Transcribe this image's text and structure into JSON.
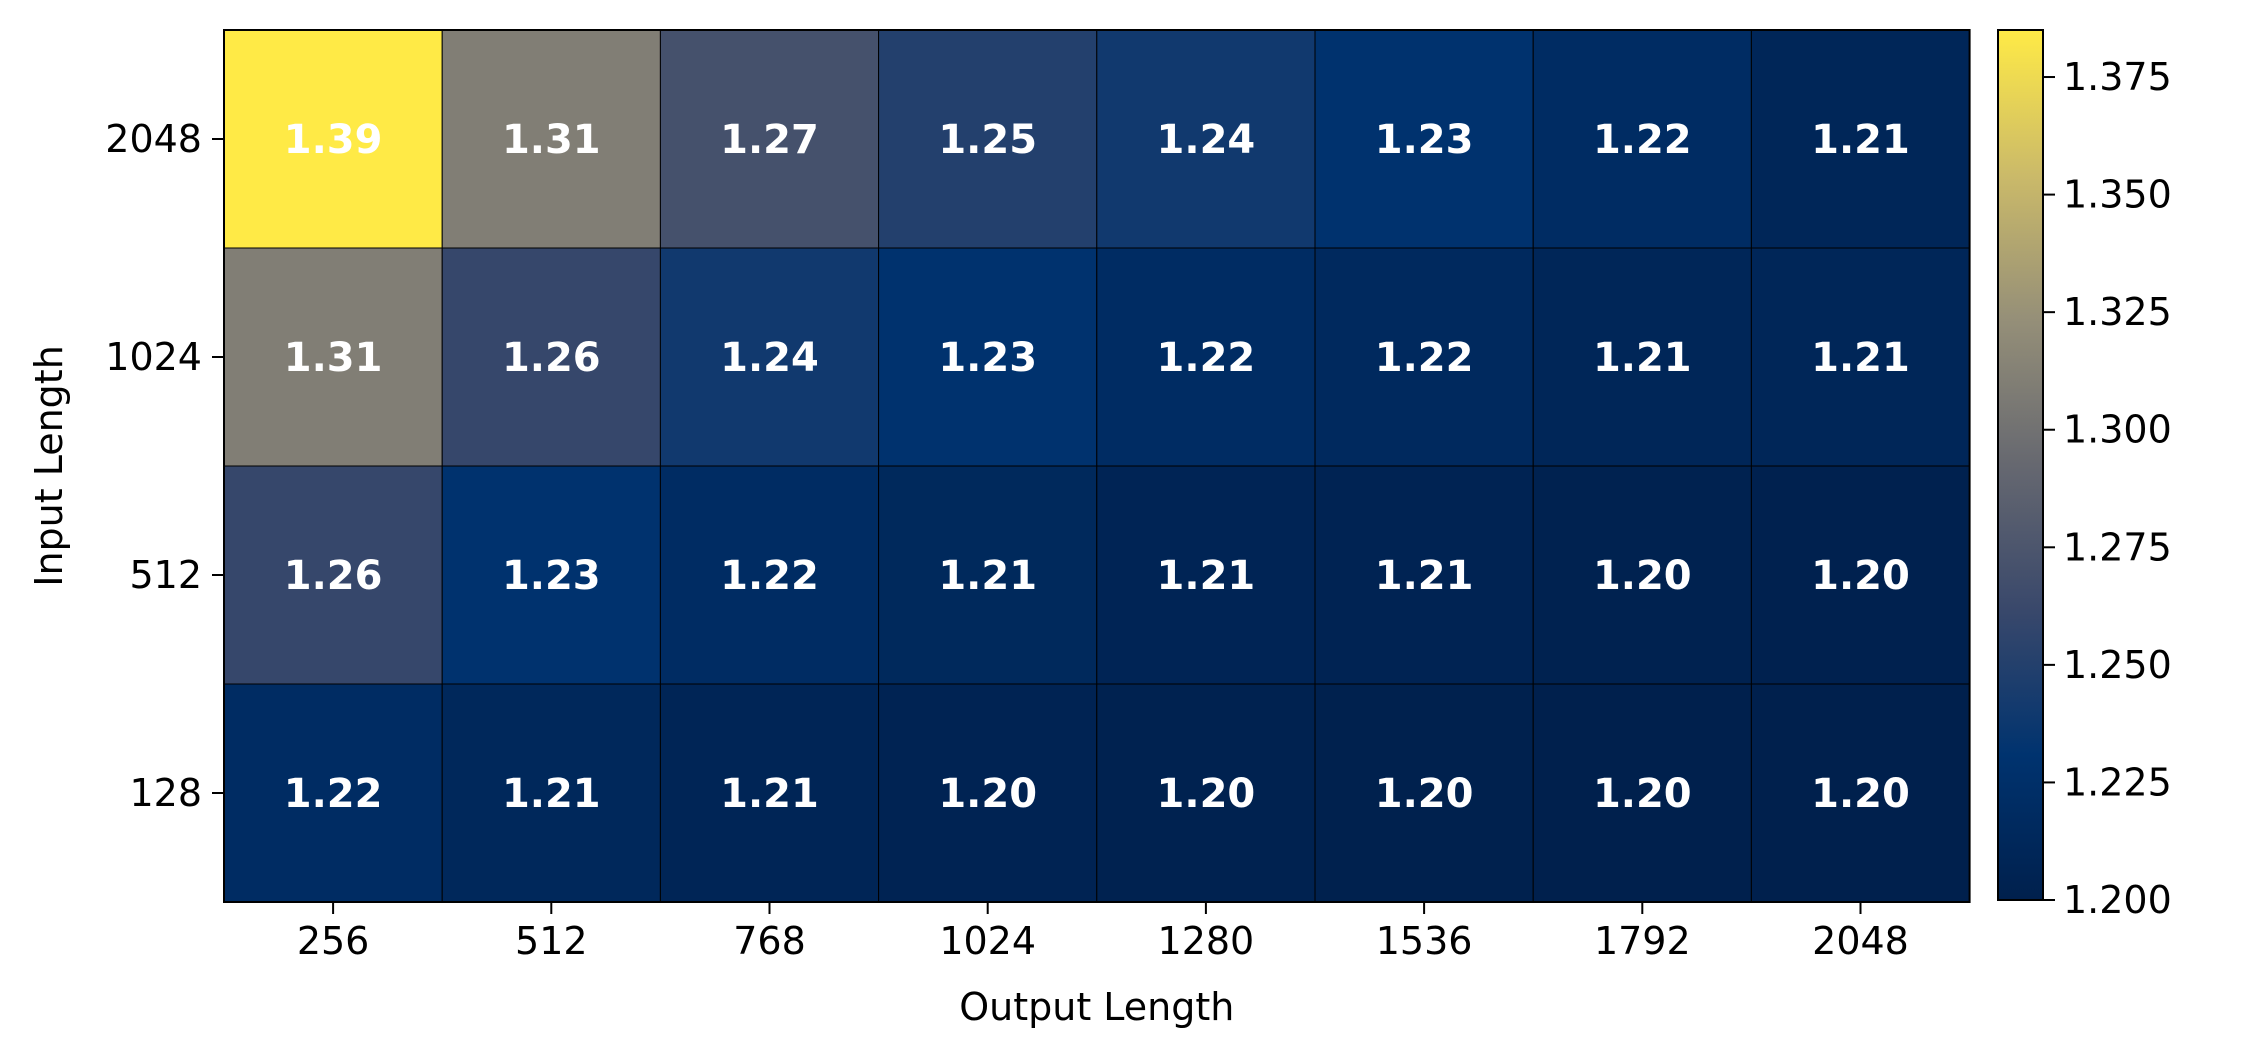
{
  "chart_data": {
    "type": "heatmap",
    "x": [
      256,
      512,
      768,
      1024,
      1280,
      1536,
      1792,
      2048
    ],
    "x_tick_labels": [
      "256",
      "512",
      "768",
      "1024",
      "1280",
      "1536",
      "1792",
      "2048"
    ],
    "y": [
      2048,
      1024,
      512,
      128
    ],
    "y_tick_labels": [
      "2048",
      "1024",
      "512",
      "128"
    ],
    "values": [
      [
        1.385,
        1.31,
        1.27,
        1.25,
        1.24,
        1.23,
        1.22,
        1.21
      ],
      [
        1.31,
        1.26,
        1.24,
        1.23,
        1.22,
        1.215,
        1.21,
        1.21
      ],
      [
        1.26,
        1.23,
        1.22,
        1.214,
        1.207,
        1.205,
        1.203,
        1.202
      ],
      [
        1.22,
        1.213,
        1.208,
        1.205,
        1.203,
        1.201,
        1.2,
        1.2
      ]
    ],
    "cell_labels": [
      [
        "1.39",
        "1.31",
        "1.27",
        "1.25",
        "1.24",
        "1.23",
        "1.22",
        "1.21"
      ],
      [
        "1.31",
        "1.26",
        "1.24",
        "1.23",
        "1.22",
        "1.22",
        "1.21",
        "1.21"
      ],
      [
        "1.26",
        "1.23",
        "1.22",
        "1.21",
        "1.21",
        "1.21",
        "1.20",
        "1.20"
      ],
      [
        "1.22",
        "1.21",
        "1.21",
        "1.20",
        "1.20",
        "1.20",
        "1.20",
        "1.20"
      ]
    ],
    "title": "",
    "xlabel": "Output Length",
    "ylabel": "Input Length",
    "colorbar": {
      "min": 1.2,
      "max": 1.385,
      "ticks": [
        1.2,
        1.225,
        1.25,
        1.275,
        1.3,
        1.325,
        1.35,
        1.375
      ],
      "tick_labels": [
        "1.200",
        "1.225",
        "1.250",
        "1.275",
        "1.300",
        "1.325",
        "1.350",
        "1.375"
      ],
      "colormap": "cividis",
      "stops": [
        "#00204d",
        "#00336f",
        "#39486b",
        "#666870",
        "#958f78",
        "#cbba69",
        "#ffea46"
      ]
    },
    "grid": false,
    "cell_edge_color": "#000000"
  }
}
